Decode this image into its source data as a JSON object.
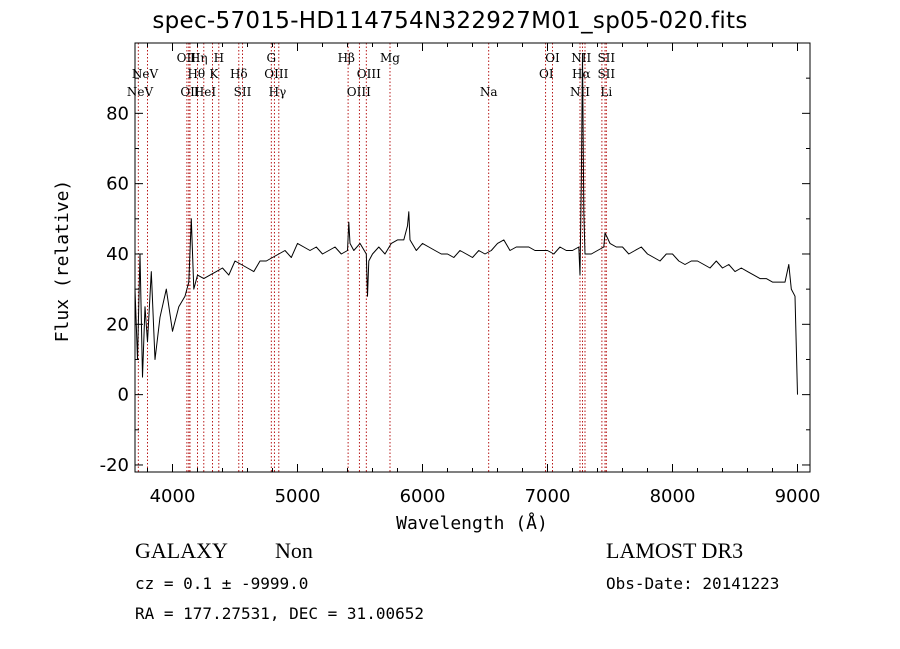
{
  "chart_data": {
    "type": "line",
    "title": "spec-57015-HD114754N322927M01_sp05-020.fits",
    "xlabel": "Wavelength (Å)",
    "ylabel": "Flux (relative)",
    "xlim": [
      3700,
      9100
    ],
    "ylim": [
      -22,
      100
    ],
    "xticks": [
      4000,
      5000,
      6000,
      7000,
      8000,
      9000
    ],
    "yticks": [
      -20,
      0,
      20,
      40,
      60,
      80
    ],
    "grid": false,
    "series": [
      {
        "x": [
          3700,
          3720,
          3740,
          3760,
          3780,
          3800,
          3830,
          3860,
          3900,
          3950,
          4000,
          4050,
          4100,
          4130,
          4150,
          4170,
          4200,
          4250,
          4300,
          4350,
          4400,
          4450,
          4500,
          4550,
          4600,
          4650,
          4700,
          4750,
          4800,
          4850,
          4900,
          4950,
          5000,
          5050,
          5100,
          5150,
          5200,
          5250,
          5300,
          5350,
          5400,
          5410,
          5420,
          5450,
          5500,
          5550,
          5560,
          5570,
          5600,
          5650,
          5700,
          5750,
          5800,
          5850,
          5880,
          5890,
          5900,
          5950,
          6000,
          6050,
          6100,
          6150,
          6200,
          6250,
          6300,
          6350,
          6400,
          6450,
          6500,
          6550,
          6600,
          6650,
          6700,
          6750,
          6800,
          6850,
          6900,
          6950,
          7000,
          7050,
          7100,
          7150,
          7200,
          7250,
          7260,
          7270,
          7280,
          7290,
          7300,
          7350,
          7400,
          7450,
          7460,
          7500,
          7550,
          7600,
          7650,
          7700,
          7750,
          7800,
          7850,
          7900,
          7950,
          8000,
          8050,
          8100,
          8150,
          8200,
          8250,
          8300,
          8350,
          8400,
          8450,
          8500,
          8550,
          8600,
          8650,
          8700,
          8750,
          8800,
          8850,
          8900,
          8930,
          8950,
          8980,
          9000
        ],
        "y": [
          30,
          10,
          40,
          5,
          25,
          15,
          35,
          10,
          22,
          30,
          18,
          25,
          28,
          32,
          50,
          30,
          34,
          33,
          34,
          35,
          36,
          34,
          38,
          37,
          36,
          35,
          38,
          38,
          39,
          40,
          41,
          39,
          43,
          42,
          41,
          42,
          40,
          41,
          42,
          40,
          41,
          49,
          43,
          41,
          43,
          40,
          28,
          38,
          40,
          42,
          40,
          43,
          44,
          44,
          48,
          52,
          44,
          41,
          43,
          42,
          41,
          40,
          40,
          39,
          41,
          40,
          39,
          41,
          40,
          41,
          43,
          44,
          41,
          42,
          42,
          42,
          41,
          41,
          41,
          40,
          42,
          41,
          41,
          42,
          34,
          60,
          97,
          52,
          40,
          40,
          41,
          42,
          46,
          43,
          42,
          42,
          40,
          41,
          42,
          40,
          39,
          38,
          40,
          40,
          38,
          37,
          38,
          38,
          37,
          36,
          38,
          36,
          37,
          35,
          36,
          35,
          34,
          33,
          33,
          32,
          32,
          32,
          37,
          30,
          28,
          0
        ]
      }
    ],
    "lines": [
      {
        "label": "NeV",
        "x": 3726
      },
      {
        "label": "NeV",
        "x": 3800
      },
      {
        "label": "OII",
        "x": 4115
      },
      {
        "label": "Hθ",
        "x": 4130
      },
      {
        "label": "OII",
        "x": 4140
      },
      {
        "label": "Hη",
        "x": 4200
      },
      {
        "label": "He I",
        "x": 4250
      },
      {
        "label": "K",
        "x": 4320
      },
      {
        "label": "H",
        "x": 4370
      },
      {
        "label": "Hδ",
        "x": 4530
      },
      {
        "label": "SII",
        "x": 4560
      },
      {
        "label": "G",
        "x": 4790
      },
      {
        "label": "OIII",
        "x": 4815
      },
      {
        "label": "Hγ",
        "x": 4850
      },
      {
        "label": "Hβ",
        "x": 5405
      },
      {
        "label": "OIII",
        "x": 5495
      },
      {
        "label": "OIII",
        "x": 5550
      },
      {
        "label": "Mg",
        "x": 5740
      },
      {
        "label": "Na",
        "x": 6530
      },
      {
        "label": "OI",
        "x": 6985
      },
      {
        "label": "OI",
        "x": 7040
      },
      {
        "label": "NII",
        "x": 7260
      },
      {
        "label": "Hα",
        "x": 7280
      },
      {
        "label": "NII",
        "x": 7300
      },
      {
        "label": "SII",
        "x": 7435
      },
      {
        "label": "SII",
        "x": 7460
      },
      {
        "label": "Li",
        "x": 7470
      }
    ],
    "line_label_rows": [
      [
        {
          "text": "OII",
          "x": 4110
        },
        {
          "text": "Hη",
          "x": 4210
        },
        {
          "text": "H",
          "x": 4370
        },
        {
          "text": "G",
          "x": 4790
        },
        {
          "text": "Hβ",
          "x": 5390
        },
        {
          "text": "Mg",
          "x": 5740
        },
        {
          "text": "OI",
          "x": 7040
        },
        {
          "text": "NII",
          "x": 7270
        },
        {
          "text": "SII",
          "x": 7470
        }
      ],
      [
        {
          "text": "NeV",
          "x": 3780
        },
        {
          "text": "Hθ",
          "x": 4190
        },
        {
          "text": "K",
          "x": 4330
        },
        {
          "text": "Hδ",
          "x": 4530
        },
        {
          "text": "OIII",
          "x": 4830
        },
        {
          "text": "OIII",
          "x": 5570
        },
        {
          "text": "OI",
          "x": 6990
        },
        {
          "text": "Hα",
          "x": 7270
        },
        {
          "text": "SII",
          "x": 7470
        }
      ],
      [
        {
          "text": "NeV",
          "x": 3740
        },
        {
          "text": "OII",
          "x": 4140
        },
        {
          "text": "HeI",
          "x": 4260
        },
        {
          "text": "SII",
          "x": 4560
        },
        {
          "text": "Hγ",
          "x": 4840
        },
        {
          "text": "OIII",
          "x": 5490
        },
        {
          "text": "Na",
          "x": 6530
        },
        {
          "text": "NII",
          "x": 7260
        },
        {
          "text": "Li",
          "x": 7470
        }
      ]
    ]
  },
  "info": {
    "class_label": "GALAXY",
    "subclass_label": "Non",
    "survey": "LAMOST DR3",
    "cz_line": "cz = 0.1 ± -9999.0",
    "obs_date": "Obs-Date: 20141223",
    "coords": "RA = 177.27531, DEC =  31.00652"
  }
}
